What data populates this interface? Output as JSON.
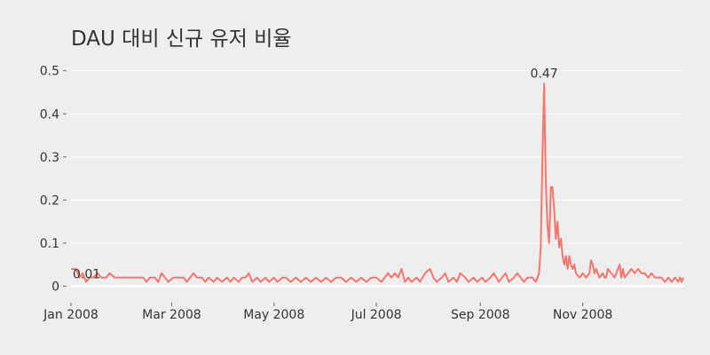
{
  "chart_data": {
    "type": "line",
    "title": "DAU 대비 신규 유저 비율",
    "xlabel": "",
    "ylabel": "",
    "x_range": [
      "2008-01-01",
      "2008-12-31"
    ],
    "ylim": [
      -0.03,
      0.52
    ],
    "y_ticks": [
      0,
      0.1,
      0.2,
      0.3,
      0.4,
      0.5
    ],
    "y_tick_labels": [
      "0",
      "0.1",
      "0.2",
      "0.3",
      "0.4",
      "0.5"
    ],
    "x_ticks": [
      "2008-01-01",
      "2008-03-01",
      "2008-05-01",
      "2008-07-01",
      "2008-09-01",
      "2008-11-01"
    ],
    "x_tick_labels": [
      "Jan 2008",
      "Mar 2008",
      "May 2008",
      "Jul 2008",
      "Sep 2008",
      "Nov 2008"
    ],
    "grid": true,
    "line_color": "#f8766d",
    "background": "#eeeeee",
    "annotations": [
      {
        "x": "2008-01-01",
        "y": 0.01,
        "text": "0.01"
      },
      {
        "x": "2008-10-09",
        "y": 0.47,
        "text": "0.47"
      }
    ],
    "series": [
      {
        "points": [
          [
            "2008-01-01",
            0.04
          ],
          [
            "2008-01-04",
            0.04
          ],
          [
            "2008-01-06",
            0.02
          ],
          [
            "2008-01-08",
            0.03
          ],
          [
            "2008-01-10",
            0.01
          ],
          [
            "2008-01-12",
            0.02
          ],
          [
            "2008-01-14",
            0.02
          ],
          [
            "2008-01-17",
            0.03
          ],
          [
            "2008-01-19",
            0.02
          ],
          [
            "2008-01-22",
            0.02
          ],
          [
            "2008-01-24",
            0.03
          ],
          [
            "2008-01-27",
            0.02
          ],
          [
            "2008-01-30",
            0.02
          ],
          [
            "2008-02-03",
            0.02
          ],
          [
            "2008-02-07",
            0.02
          ],
          [
            "2008-02-10",
            0.02
          ],
          [
            "2008-02-13",
            0.02
          ],
          [
            "2008-02-15",
            0.01
          ],
          [
            "2008-02-17",
            0.02
          ],
          [
            "2008-02-20",
            0.02
          ],
          [
            "2008-02-22",
            0.01
          ],
          [
            "2008-02-24",
            0.03
          ],
          [
            "2008-02-26",
            0.02
          ],
          [
            "2008-02-28",
            0.01
          ],
          [
            "2008-03-02",
            0.02
          ],
          [
            "2008-03-05",
            0.02
          ],
          [
            "2008-03-08",
            0.02
          ],
          [
            "2008-03-10",
            0.01
          ],
          [
            "2008-03-12",
            0.02
          ],
          [
            "2008-03-14",
            0.03
          ],
          [
            "2008-03-16",
            0.02
          ],
          [
            "2008-03-19",
            0.02
          ],
          [
            "2008-03-21",
            0.01
          ],
          [
            "2008-03-23",
            0.02
          ],
          [
            "2008-03-26",
            0.01
          ],
          [
            "2008-03-28",
            0.02
          ],
          [
            "2008-03-31",
            0.01
          ],
          [
            "2008-04-03",
            0.02
          ],
          [
            "2008-04-05",
            0.01
          ],
          [
            "2008-04-07",
            0.02
          ],
          [
            "2008-04-10",
            0.01
          ],
          [
            "2008-04-12",
            0.02
          ],
          [
            "2008-04-14",
            0.02
          ],
          [
            "2008-04-16",
            0.03
          ],
          [
            "2008-04-18",
            0.01
          ],
          [
            "2008-04-21",
            0.02
          ],
          [
            "2008-04-23",
            0.01
          ],
          [
            "2008-04-26",
            0.02
          ],
          [
            "2008-04-28",
            0.01
          ],
          [
            "2008-05-01",
            0.02
          ],
          [
            "2008-05-03",
            0.01
          ],
          [
            "2008-05-06",
            0.02
          ],
          [
            "2008-05-08",
            0.02
          ],
          [
            "2008-05-11",
            0.01
          ],
          [
            "2008-05-14",
            0.02
          ],
          [
            "2008-05-17",
            0.01
          ],
          [
            "2008-05-20",
            0.02
          ],
          [
            "2008-05-23",
            0.01
          ],
          [
            "2008-05-26",
            0.02
          ],
          [
            "2008-05-29",
            0.01
          ],
          [
            "2008-06-01",
            0.02
          ],
          [
            "2008-06-04",
            0.01
          ],
          [
            "2008-06-07",
            0.02
          ],
          [
            "2008-06-10",
            0.02
          ],
          [
            "2008-06-13",
            0.01
          ],
          [
            "2008-06-16",
            0.02
          ],
          [
            "2008-06-19",
            0.01
          ],
          [
            "2008-06-22",
            0.02
          ],
          [
            "2008-06-25",
            0.01
          ],
          [
            "2008-06-28",
            0.02
          ],
          [
            "2008-07-01",
            0.02
          ],
          [
            "2008-07-04",
            0.01
          ],
          [
            "2008-07-06",
            0.02
          ],
          [
            "2008-07-08",
            0.03
          ],
          [
            "2008-07-10",
            0.02
          ],
          [
            "2008-07-12",
            0.03
          ],
          [
            "2008-07-14",
            0.02
          ],
          [
            "2008-07-16",
            0.04
          ],
          [
            "2008-07-18",
            0.01
          ],
          [
            "2008-07-20",
            0.02
          ],
          [
            "2008-07-22",
            0.01
          ],
          [
            "2008-07-25",
            0.02
          ],
          [
            "2008-07-27",
            0.01
          ],
          [
            "2008-07-30",
            0.03
          ],
          [
            "2008-08-02",
            0.04
          ],
          [
            "2008-08-04",
            0.02
          ],
          [
            "2008-08-06",
            0.01
          ],
          [
            "2008-08-09",
            0.02
          ],
          [
            "2008-08-11",
            0.03
          ],
          [
            "2008-08-13",
            0.01
          ],
          [
            "2008-08-16",
            0.02
          ],
          [
            "2008-08-18",
            0.01
          ],
          [
            "2008-08-20",
            0.03
          ],
          [
            "2008-08-23",
            0.02
          ],
          [
            "2008-08-25",
            0.01
          ],
          [
            "2008-08-28",
            0.02
          ],
          [
            "2008-08-30",
            0.01
          ],
          [
            "2008-09-02",
            0.02
          ],
          [
            "2008-09-04",
            0.01
          ],
          [
            "2008-09-07",
            0.02
          ],
          [
            "2008-09-09",
            0.03
          ],
          [
            "2008-09-12",
            0.01
          ],
          [
            "2008-09-14",
            0.02
          ],
          [
            "2008-09-16",
            0.03
          ],
          [
            "2008-09-18",
            0.01
          ],
          [
            "2008-09-21",
            0.02
          ],
          [
            "2008-09-23",
            0.03
          ],
          [
            "2008-09-25",
            0.02
          ],
          [
            "2008-09-27",
            0.01
          ],
          [
            "2008-09-29",
            0.02
          ],
          [
            "2008-10-02",
            0.02
          ],
          [
            "2008-10-04",
            0.01
          ],
          [
            "2008-10-06",
            0.03
          ],
          [
            "2008-10-07",
            0.09
          ],
          [
            "2008-10-08",
            0.3
          ],
          [
            "2008-10-09",
            0.47
          ],
          [
            "2008-10-10",
            0.24
          ],
          [
            "2008-10-11",
            0.14
          ],
          [
            "2008-10-12",
            0.1
          ],
          [
            "2008-10-13",
            0.23
          ],
          [
            "2008-10-14",
            0.23
          ],
          [
            "2008-10-15",
            0.18
          ],
          [
            "2008-10-16",
            0.11
          ],
          [
            "2008-10-17",
            0.15
          ],
          [
            "2008-10-18",
            0.09
          ],
          [
            "2008-10-19",
            0.11
          ],
          [
            "2008-10-20",
            0.07
          ],
          [
            "2008-10-21",
            0.05
          ],
          [
            "2008-10-22",
            0.07
          ],
          [
            "2008-10-23",
            0.04
          ],
          [
            "2008-10-24",
            0.07
          ],
          [
            "2008-10-25",
            0.05
          ],
          [
            "2008-10-26",
            0.04
          ],
          [
            "2008-10-27",
            0.05
          ],
          [
            "2008-10-28",
            0.03
          ],
          [
            "2008-10-30",
            0.02
          ],
          [
            "2008-11-01",
            0.03
          ],
          [
            "2008-11-03",
            0.02
          ],
          [
            "2008-11-05",
            0.03
          ],
          [
            "2008-11-06",
            0.06
          ],
          [
            "2008-11-07",
            0.05
          ],
          [
            "2008-11-08",
            0.03
          ],
          [
            "2008-11-09",
            0.04
          ],
          [
            "2008-11-10",
            0.03
          ],
          [
            "2008-11-11",
            0.02
          ],
          [
            "2008-11-13",
            0.03
          ],
          [
            "2008-11-14",
            0.02
          ],
          [
            "2008-11-15",
            0.02
          ],
          [
            "2008-11-16",
            0.04
          ],
          [
            "2008-11-18",
            0.03
          ],
          [
            "2008-11-20",
            0.02
          ],
          [
            "2008-11-22",
            0.04
          ],
          [
            "2008-11-23",
            0.05
          ],
          [
            "2008-11-24",
            0.02
          ],
          [
            "2008-11-25",
            0.04
          ],
          [
            "2008-11-26",
            0.02
          ],
          [
            "2008-11-28",
            0.03
          ],
          [
            "2008-11-30",
            0.04
          ],
          [
            "2008-12-02",
            0.03
          ],
          [
            "2008-12-04",
            0.04
          ],
          [
            "2008-12-06",
            0.03
          ],
          [
            "2008-12-08",
            0.03
          ],
          [
            "2008-12-10",
            0.02
          ],
          [
            "2008-12-12",
            0.03
          ],
          [
            "2008-12-14",
            0.02
          ],
          [
            "2008-12-16",
            0.02
          ],
          [
            "2008-12-18",
            0.02
          ],
          [
            "2008-12-20",
            0.01
          ],
          [
            "2008-12-22",
            0.02
          ],
          [
            "2008-12-24",
            0.01
          ],
          [
            "2008-12-26",
            0.02
          ],
          [
            "2008-12-28",
            0.01
          ],
          [
            "2008-12-29",
            0.02
          ],
          [
            "2008-12-30",
            0.01
          ],
          [
            "2008-12-31",
            0.02
          ]
        ]
      }
    ]
  }
}
